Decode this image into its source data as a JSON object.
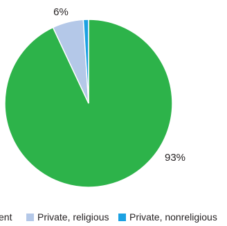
{
  "chart_data": {
    "type": "pie",
    "title": "",
    "slices": [
      {
        "label": "Public, government",
        "value": 93,
        "data_label": "93%",
        "color": "#2db34a"
      },
      {
        "label": "Private, religious",
        "value": 6,
        "data_label": "6%",
        "color": "#b4c8e8"
      },
      {
        "label": "Private, nonreligious",
        "value": 1,
        "data_label": "",
        "color": "#1ba1e2"
      }
    ],
    "legend": {
      "placement": "bottom",
      "visible_labels": [
        "ent",
        "Private, religious",
        "Private, nonreligious"
      ]
    }
  }
}
